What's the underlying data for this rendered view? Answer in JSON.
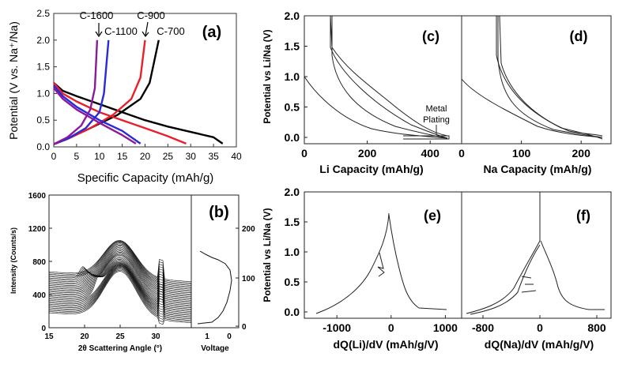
{
  "figure": {
    "panels": [
      "(a)",
      "(b)",
      "(c)",
      "(d)",
      "(e)",
      "(f)"
    ]
  },
  "chart_data": [
    {
      "panel": "(a)",
      "type": "line",
      "xlabel": "Specific Capacity (mAh/g)",
      "ylabel": "Potential (V vs. Na⁺/Na)",
      "xlim": [
        0,
        40
      ],
      "ylim": [
        0,
        2.5
      ],
      "x_ticks": [
        "0",
        "5",
        "10",
        "15",
        "20",
        "25",
        "30",
        "35",
        "40"
      ],
      "y_ticks": [
        "0.0",
        "0.5",
        "1.0",
        "1.5",
        "2.0",
        "2.5"
      ],
      "annotations": [
        "C-1600",
        "C-1100",
        "C-900",
        "C-700"
      ],
      "series": [
        {
          "name": "C-700",
          "color": "#000000",
          "discharge": [
            [
              0,
              1.2
            ],
            [
              2,
              1.05
            ],
            [
              5,
              0.95
            ],
            [
              10,
              0.8
            ],
            [
              15,
              0.65
            ],
            [
              20,
              0.5
            ],
            [
              25,
              0.38
            ],
            [
              30,
              0.28
            ],
            [
              35,
              0.18
            ],
            [
              37,
              0.06
            ]
          ],
          "charge": [
            [
              0,
              0.05
            ],
            [
              3,
              0.15
            ],
            [
              8,
              0.35
            ],
            [
              14,
              0.6
            ],
            [
              19,
              0.9
            ],
            [
              21,
              1.2
            ],
            [
              22,
              1.6
            ],
            [
              23,
              2.0
            ]
          ]
        },
        {
          "name": "C-900",
          "color": "#e8202a",
          "discharge": [
            [
              0,
              1.2
            ],
            [
              2,
              1.0
            ],
            [
              5,
              0.85
            ],
            [
              10,
              0.65
            ],
            [
              15,
              0.5
            ],
            [
              20,
              0.35
            ],
            [
              25,
              0.2
            ],
            [
              29,
              0.06
            ]
          ],
          "charge": [
            [
              0,
              0.05
            ],
            [
              3,
              0.15
            ],
            [
              8,
              0.35
            ],
            [
              13,
              0.6
            ],
            [
              17,
              0.9
            ],
            [
              19,
              1.3
            ],
            [
              20,
              2.0
            ]
          ]
        },
        {
          "name": "C-1100",
          "color": "#2a2ad8",
          "discharge": [
            [
              0,
              1.15
            ],
            [
              2,
              0.95
            ],
            [
              5,
              0.75
            ],
            [
              10,
              0.5
            ],
            [
              15,
              0.3
            ],
            [
              19,
              0.06
            ]
          ],
          "charge": [
            [
              0,
              0.05
            ],
            [
              3,
              0.15
            ],
            [
              7,
              0.35
            ],
            [
              10,
              0.65
            ],
            [
              11,
              1.0
            ],
            [
              11.5,
              1.5
            ],
            [
              12,
              2.0
            ]
          ]
        },
        {
          "name": "C-1600",
          "color": "#8a1a9a",
          "discharge": [
            [
              0,
              1.1
            ],
            [
              2,
              0.9
            ],
            [
              5,
              0.7
            ],
            [
              10,
              0.45
            ],
            [
              15,
              0.22
            ],
            [
              18,
              0.06
            ]
          ],
          "charge": [
            [
              0,
              0.05
            ],
            [
              3,
              0.18
            ],
            [
              6,
              0.4
            ],
            [
              8,
              0.7
            ],
            [
              9,
              1.1
            ],
            [
              9.5,
              2.0
            ]
          ]
        }
      ]
    },
    {
      "panel": "(b)",
      "type": "line",
      "xlabel": "2θ Scattering Angle (°)",
      "ylabel": "Intensity (Counts/s)",
      "xlim": [
        15,
        35
      ],
      "ylim": [
        0,
        1600
      ],
      "x_ticks": [
        "15",
        "20",
        "25",
        "30"
      ],
      "y_ticks": [
        "0",
        "400",
        "800",
        "1200",
        "1600"
      ],
      "side_xlabel": "Voltage",
      "side_x_ticks": [
        "1",
        "0"
      ],
      "side_y_ticks": [
        "0",
        "100",
        "200"
      ]
    },
    {
      "panel": "(c)",
      "type": "line",
      "xlabel": "Li Capacity (mAh/g)",
      "ylabel": "Potential vs Li/Na (V)",
      "xlim": [
        0,
        500
      ],
      "ylim": [
        0,
        2.0
      ],
      "x_ticks": [
        "0",
        "200",
        "400"
      ],
      "y_ticks": [
        "0.0",
        "0.5",
        "1.0",
        "1.5",
        "2.0"
      ],
      "annotations": [
        "Metal",
        "Plating"
      ]
    },
    {
      "panel": "(d)",
      "type": "line",
      "xlabel": "Na Capacity (mAh/g)",
      "xlim": [
        0,
        250
      ],
      "x_ticks": [
        "0",
        "100",
        "200"
      ]
    },
    {
      "panel": "(e)",
      "type": "line",
      "xlabel": "dQ(Li)/dV (mAh/g/V)",
      "ylabel": "Potential vs Li/Na (V)",
      "xlim": [
        -1600,
        1300
      ],
      "ylim": [
        0,
        2.0
      ],
      "x_ticks": [
        "-1000",
        "0",
        "1000"
      ],
      "y_ticks": [
        "0.0",
        "0.5",
        "1.0",
        "1.5",
        "2.0"
      ]
    },
    {
      "panel": "(f)",
      "type": "line",
      "xlabel": "dQ(Na)/dV (mAh/g/V)",
      "xlim": [
        -1100,
        1000
      ],
      "x_ticks": [
        "-800",
        "0",
        "800"
      ]
    }
  ]
}
